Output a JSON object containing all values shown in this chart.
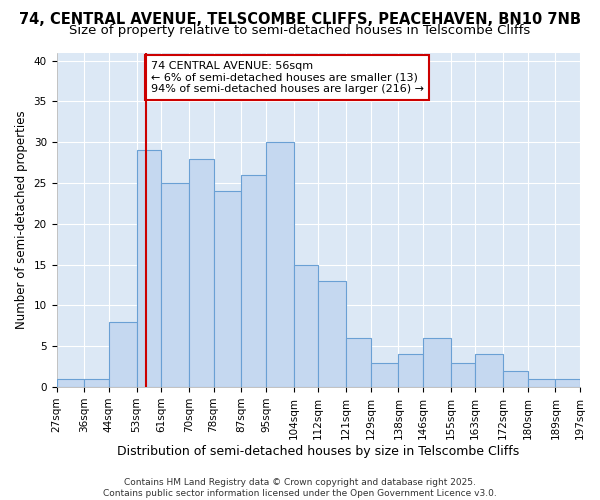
{
  "title1": "74, CENTRAL AVENUE, TELSCOMBE CLIFFS, PEACEHAVEN, BN10 7NB",
  "title2": "Size of property relative to semi-detached houses in Telscombe Cliffs",
  "xlabel": "Distribution of semi-detached houses by size in Telscombe Cliffs",
  "ylabel": "Number of semi-detached properties",
  "bin_labels": [
    "27sqm",
    "36sqm",
    "44sqm",
    "53sqm",
    "61sqm",
    "70sqm",
    "78sqm",
    "87sqm",
    "95sqm",
    "104sqm",
    "112sqm",
    "121sqm",
    "129sqm",
    "138sqm",
    "146sqm",
    "155sqm",
    "163sqm",
    "172sqm",
    "180sqm",
    "189sqm",
    "197sqm"
  ],
  "bar_values": [
    1,
    1,
    8,
    29,
    25,
    28,
    24,
    26,
    30,
    15,
    13,
    6,
    3,
    4,
    6,
    3,
    4,
    2,
    1,
    1
  ],
  "bin_edges": [
    27,
    36,
    44,
    53,
    61,
    70,
    78,
    87,
    95,
    104,
    112,
    121,
    129,
    138,
    146,
    155,
    163,
    172,
    180,
    189,
    197
  ],
  "bar_color": "#c5d8f0",
  "bar_edge_color": "#6aa0d4",
  "vline_x": 56,
  "vline_color": "#cc0000",
  "annotation_text": "74 CENTRAL AVENUE: 56sqm\n← 6% of semi-detached houses are smaller (13)\n94% of semi-detached houses are larger (216) →",
  "annotation_box_color": "#ffffff",
  "annotation_box_edge": "#cc0000",
  "ylim": [
    0,
    41
  ],
  "yticks": [
    0,
    5,
    10,
    15,
    20,
    25,
    30,
    35,
    40
  ],
  "bg_color": "#ffffff",
  "plot_bg_color": "#dce8f5",
  "grid_color": "#ffffff",
  "footer_text": "Contains HM Land Registry data © Crown copyright and database right 2025.\nContains public sector information licensed under the Open Government Licence v3.0.",
  "title1_fontsize": 10.5,
  "title2_fontsize": 9.5,
  "xlabel_fontsize": 9,
  "ylabel_fontsize": 8.5,
  "tick_fontsize": 7.5,
  "annotation_fontsize": 8,
  "footer_fontsize": 6.5
}
